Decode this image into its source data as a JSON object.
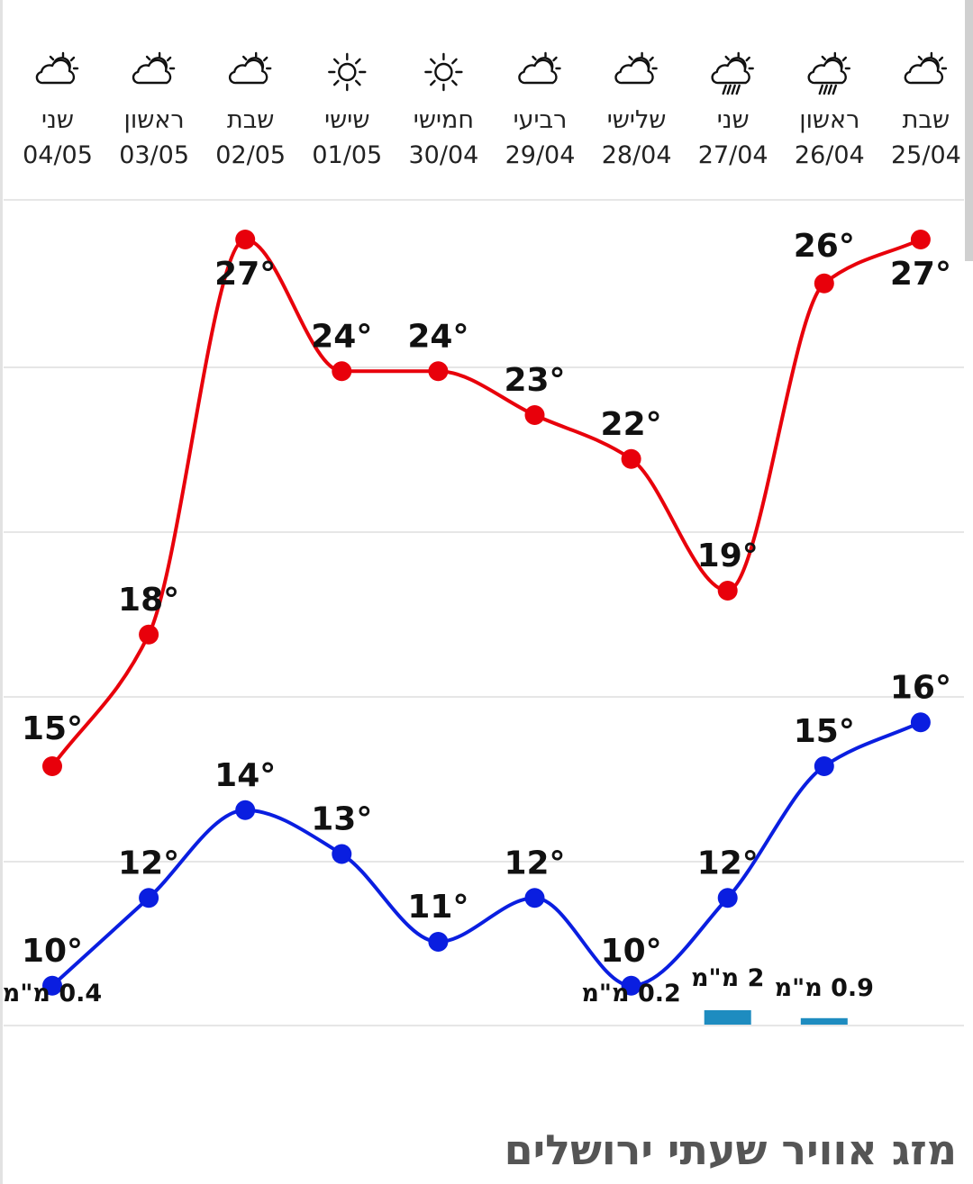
{
  "page": {
    "title": "מזג אוויר שעתי ירושלים"
  },
  "colors": {
    "high": "#e8000b",
    "low": "#0a1ee0",
    "rain": "#1e8cc0",
    "grid": "#e6e6e6",
    "text": "#222222",
    "title": "#555555"
  },
  "chart_data": {
    "type": "line",
    "title": "",
    "xlabel": "",
    "ylabel": "",
    "ylim": [
      7.5,
      31.5
    ],
    "grid": true,
    "x": [
      "04/05",
      "03/05",
      "02/05",
      "01/05",
      "30/04",
      "29/04",
      "28/04",
      "27/04",
      "26/04",
      "25/04"
    ],
    "days": [
      {
        "name": "שני",
        "date": "04/05",
        "icon": "partly-cloudy-icon"
      },
      {
        "name": "ראשון",
        "date": "03/05",
        "icon": "partly-cloudy-icon"
      },
      {
        "name": "שבת",
        "date": "02/05",
        "icon": "partly-cloudy-icon"
      },
      {
        "name": "שישי",
        "date": "01/05",
        "icon": "sun-icon"
      },
      {
        "name": "חמישי",
        "date": "30/04",
        "icon": "sun-icon"
      },
      {
        "name": "רביעי",
        "date": "29/04",
        "icon": "partly-cloudy-icon"
      },
      {
        "name": "שלישי",
        "date": "28/04",
        "icon": "partly-cloudy-icon"
      },
      {
        "name": "שני",
        "date": "27/04",
        "icon": "rain-cloud-icon"
      },
      {
        "name": "ראשון",
        "date": "26/04",
        "icon": "rain-cloud-icon"
      },
      {
        "name": "שבת",
        "date": "25/04",
        "icon": "partly-cloudy-icon"
      }
    ],
    "series": [
      {
        "key": "high",
        "values": [
          15,
          18,
          27,
          24,
          24,
          23,
          22,
          19,
          26,
          27
        ],
        "labels": [
          "15°",
          "18°",
          "27°",
          "24°",
          "24°",
          "23°",
          "22°",
          "19°",
          "26°",
          "27°"
        ]
      },
      {
        "key": "low",
        "values": [
          10,
          12,
          14,
          13,
          11,
          12,
          10,
          12,
          15,
          16
        ],
        "labels": [
          "10°",
          "12°",
          "14°",
          "13°",
          "11°",
          "12°",
          "10°",
          "12°",
          "15°",
          "16°"
        ]
      }
    ],
    "precipitation": {
      "unit": "מ\"מ",
      "values": [
        0.4,
        null,
        null,
        null,
        null,
        null,
        0.2,
        2,
        0.9,
        null
      ],
      "labels": [
        "0.4 מ\"מ",
        "",
        "",
        "",
        "",
        "",
        "0.2 מ\"מ",
        "2 מ\"מ",
        "0.9 מ\"מ",
        ""
      ]
    }
  }
}
